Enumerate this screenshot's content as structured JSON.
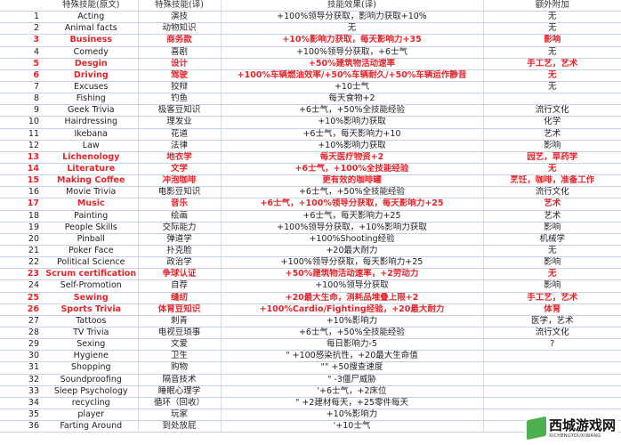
{
  "header": [
    "",
    "特殊技能(原文)",
    "特殊技能(译)",
    "技能效果(译)",
    "额外附加"
  ],
  "highlight_color": "#e3262b",
  "rows": [
    {
      "n": "1",
      "en": "Acting",
      "cn": "演技",
      "effect": "+100%领导分获取，影响力获取+10%",
      "extra": "无",
      "hl": false
    },
    {
      "n": "2",
      "en": "Animal facts",
      "cn": "动物知识",
      "effect": "无",
      "extra": "无",
      "hl": false
    },
    {
      "n": "3",
      "en": "Business",
      "cn": "商务款",
      "effect": "+10%影响力获取，每天影响力+35",
      "extra": "影响",
      "hl": true
    },
    {
      "n": "4",
      "en": "Comedy",
      "cn": "喜剧",
      "effect": "+100%领导分获取，+6士气",
      "extra": "无",
      "hl": false
    },
    {
      "n": "5",
      "en": "Desgin",
      "cn": "设计",
      "effect": "+50%建筑物活动速率",
      "extra": "手工艺，艺术",
      "hl": true
    },
    {
      "n": "6",
      "en": "Driving",
      "cn": "驾驶",
      "effect": "+100%车辆燃油效率/+50%车辆耐久/+50%车辆运作静音",
      "extra": "无",
      "hl": true
    },
    {
      "n": "7",
      "en": "Excuses",
      "cn": "狡辩",
      "effect": "+10士气",
      "extra": "无",
      "hl": false
    },
    {
      "n": "8",
      "en": "Fishing",
      "cn": "钓鱼",
      "effect": "每天食物+2",
      "extra": "",
      "hl": false
    },
    {
      "n": "9",
      "en": "Geek Trivia",
      "cn": "极客豆知识",
      "effect": "+6士气，+50%全技能经验",
      "extra": "流行文化",
      "hl": false
    },
    {
      "n": "10",
      "en": "Hairdressing",
      "cn": "理发业",
      "effect": "+10%影响力获取",
      "extra": "化学",
      "hl": false
    },
    {
      "n": "11",
      "en": "Ikebana",
      "cn": "花道",
      "effect": "+6士气，每天影响力+10",
      "extra": "艺术",
      "hl": false
    },
    {
      "n": "12",
      "en": "Law",
      "cn": "法律",
      "effect": "+10%影响力获取",
      "extra": "影响",
      "hl": false
    },
    {
      "n": "13",
      "en": "Lichenology",
      "cn": "地衣学",
      "effect": "每天医疗物资+2",
      "extra": "园艺，草药学",
      "hl": true
    },
    {
      "n": "14",
      "en": "Literature",
      "cn": "文学",
      "effect": "+6士气，+100%全技能经验",
      "extra": "无",
      "hl": true
    },
    {
      "n": "15",
      "en": "Making Coffee",
      "cn": "冲泡咖啡",
      "effect": "更有效的咖啡罐",
      "extra": "烹饪，咖啡，准备工作",
      "hl": true
    },
    {
      "n": "16",
      "en": "Movie Trivia",
      "cn": "电影豆知识",
      "effect": "+6士气，+50%全技能经验",
      "extra": "流行文化",
      "hl": false
    },
    {
      "n": "17",
      "en": "Music",
      "cn": "音乐",
      "effect": "+6士气，+100%领导分获取，每天影响力+25",
      "extra": "艺术",
      "hl": true
    },
    {
      "n": "18",
      "en": "Painting",
      "cn": "绘画",
      "effect": "+6士气，每天影响力+25",
      "extra": "艺术",
      "hl": false
    },
    {
      "n": "19",
      "en": "People Skills",
      "cn": "交际能力",
      "effect": "+100%领导分获取，+10%影响力获取",
      "extra": "影响",
      "hl": false
    },
    {
      "n": "20",
      "en": "Pinball",
      "cn": "弹道学",
      "effect": "+100%Shooting经验",
      "extra": "机械学",
      "hl": false
    },
    {
      "n": "21",
      "en": "Poker Face",
      "cn": "扑克脸",
      "effect": "+20最大耐力",
      "extra": "无",
      "hl": false
    },
    {
      "n": "22",
      "en": "Political Science",
      "cn": "政治学",
      "effect": "+100%领导分获取，每天影响力+25",
      "extra": "影响",
      "hl": false
    },
    {
      "n": "23",
      "en": "Scrum certification",
      "cn": "争球认证",
      "effect": "+50%建筑物活动速率，+2劳动力",
      "extra": "无",
      "hl": true
    },
    {
      "n": "24",
      "en": "Self-Promotion",
      "cn": "自荐",
      "effect": "+100%领导分获取",
      "extra": "影响",
      "hl": false
    },
    {
      "n": "25",
      "en": "Sewing",
      "cn": "缝纫",
      "effect": "+20最大生命，消耗品堆叠上限+2",
      "extra": "手工艺，艺术",
      "hl": true
    },
    {
      "n": "26",
      "en": "Sports Trivia",
      "cn": "体育豆知识",
      "effect": "+100%Cardio/Fighting经验，+20最大耐力",
      "extra": "体育",
      "hl": true
    },
    {
      "n": "27",
      "en": "Tattoos",
      "cn": "刺青",
      "effect": "+10%影响力",
      "extra": "医学，艺术",
      "hl": false
    },
    {
      "n": "28",
      "en": "TV Trivia",
      "cn": "电视豆琐事",
      "effect": "+6士气，+50%全技能经验",
      "extra": "流行文化",
      "hl": false
    },
    {
      "n": "29",
      "en": "Sexing",
      "cn": "文爱",
      "effect": "每日影响力-5",
      "extra": "?",
      "hl": false
    },
    {
      "n": "30",
      "en": "Hygiene",
      "cn": "卫生",
      "effect": "\"  +100感染抗性，+20最大生命值",
      "extra": "",
      "hl": false
    },
    {
      "n": "31",
      "en": "Shopping",
      "cn": "购物",
      "effect": "\"\"  +50搜查速度",
      "extra": "",
      "hl": false
    },
    {
      "n": "32",
      "en": "Soundproofing",
      "cn": "隔音技术",
      "effect": "\"  -3僵尸威胁",
      "extra": "",
      "hl": false
    },
    {
      "n": "33",
      "en": "Sleep Psychology",
      "cn": "睡眠心理学",
      "effect": "'+6士气，+2床位",
      "extra": "",
      "hl": false
    },
    {
      "n": "34",
      "en": "recycling",
      "cn": "循环（回收）",
      "effect": "\"  +2建材每天，+25零件每天",
      "extra": "",
      "hl": false
    },
    {
      "n": "35",
      "en": "player",
      "cn": "玩家",
      "effect": "+10%影响力",
      "extra": "",
      "hl": false
    },
    {
      "n": "36",
      "en": "Farting Around",
      "cn": "到处放屁",
      "effect": "'+10士气",
      "extra": "",
      "hl": false
    }
  ],
  "watermark": {
    "cn": "西城游戏网",
    "en": "XICHENGYOUXIWANG"
  }
}
